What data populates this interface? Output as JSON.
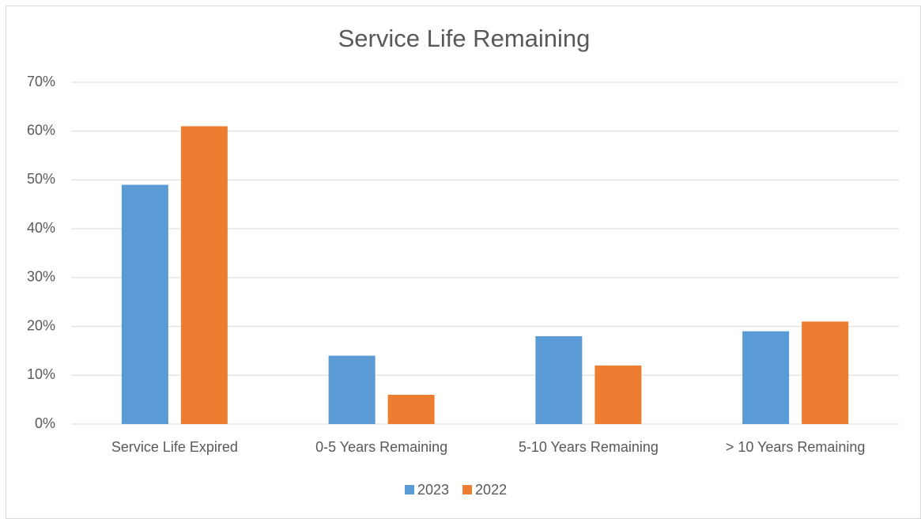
{
  "chart_data": {
    "type": "bar",
    "title": "Service Life Remaining",
    "categories": [
      "Service Life Expired",
      "0-5 Years Remaining",
      "5-10 Years Remaining",
      "> 10 Years Remaining"
    ],
    "series": [
      {
        "name": "2023",
        "color": "#5b9bd5",
        "values": [
          49,
          14,
          18,
          19
        ]
      },
      {
        "name": "2022",
        "color": "#ed7d31",
        "values": [
          61,
          6,
          12,
          21
        ]
      }
    ],
    "ylim": [
      0,
      70
    ],
    "yticks": [
      {
        "value": 0,
        "label": "0%"
      },
      {
        "value": 10,
        "label": "10%"
      },
      {
        "value": 20,
        "label": "20%"
      },
      {
        "value": 30,
        "label": "30%"
      },
      {
        "value": 40,
        "label": "40%"
      },
      {
        "value": 50,
        "label": "50%"
      },
      {
        "value": 60,
        "label": "60%"
      },
      {
        "value": 70,
        "label": "70%"
      }
    ],
    "grid": true,
    "legend": "bottom"
  }
}
